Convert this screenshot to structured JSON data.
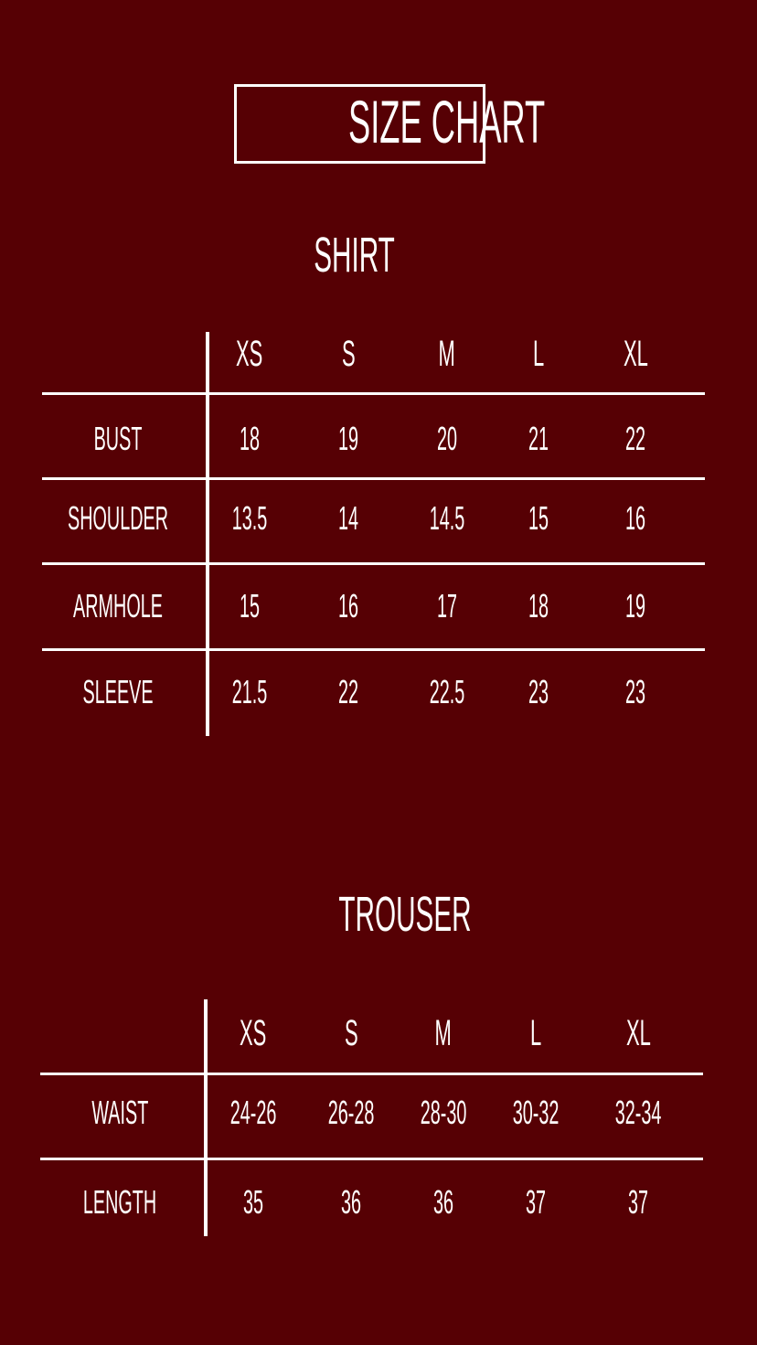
{
  "title": "SIZE CHART",
  "colors": {
    "background": "#560004",
    "foreground": "#ffffff"
  },
  "shirt": {
    "heading": "SHIRT",
    "sizes": [
      "XS",
      "S",
      "M",
      "L",
      "XL"
    ],
    "rows": [
      {
        "label": "BUST",
        "values": [
          "18",
          "19",
          "20",
          "21",
          "22"
        ]
      },
      {
        "label": "SHOULDER",
        "values": [
          "13.5",
          "14",
          "14.5",
          "15",
          "16"
        ]
      },
      {
        "label": "ARMHOLE",
        "values": [
          "15",
          "16",
          "17",
          "18",
          "19"
        ]
      },
      {
        "label": "SLEEVE",
        "values": [
          "21.5",
          "22",
          "22.5",
          "23",
          "23"
        ]
      }
    ]
  },
  "trouser": {
    "heading": "TROUSER",
    "sizes": [
      "XS",
      "S",
      "M",
      "L",
      "XL"
    ],
    "rows": [
      {
        "label": "WAIST",
        "values": [
          "24-26",
          "26-28",
          "28-30",
          "30-32",
          "32-34"
        ]
      },
      {
        "label": "LENGTH",
        "values": [
          "35",
          "36",
          "36",
          "37",
          "37"
        ]
      }
    ]
  }
}
